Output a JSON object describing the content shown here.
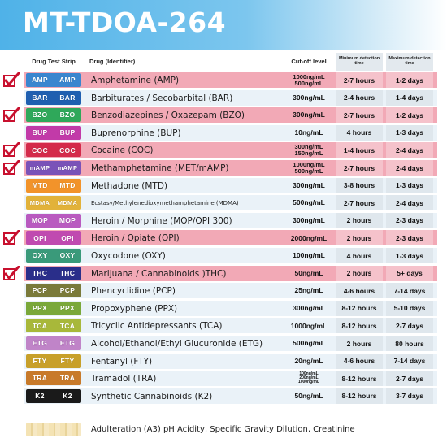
{
  "title": "MT-TDOA-264",
  "headers": {
    "strip": "Drug Test Strip",
    "drug": "Drug (Identifier)",
    "cutoff": "Cut-off level",
    "min": "Minimum detection time",
    "max": "Maximum detection time"
  },
  "colors": {
    "banner": "#4fb2e8",
    "highlight_row": "#f2a9b6",
    "normal_row": "#eaf2f8",
    "check": "#c8102e"
  },
  "rows": [
    {
      "strip": "AMP",
      "color": "#3a86cf",
      "drug": "Amphetamine (AMP)",
      "cutoff": [
        "1000ng/mL",
        "500ng/mL"
      ],
      "min": "2-7 hours",
      "max": "1-2 days",
      "checked": true
    },
    {
      "strip": "BAR",
      "color": "#1f5fb0",
      "drug": "Barbiturates / Secobarbital (BAR)",
      "cutoff": [
        "300ng/mL"
      ],
      "min": "2-4 hours",
      "max": "1-4 days",
      "checked": false
    },
    {
      "strip": "BZO",
      "color": "#2fa85a",
      "drug": "Benzodiazepines / Oxazepam (BZO)",
      "cutoff": [
        "300ng/mL"
      ],
      "min": "2-7 hours",
      "max": "1-2 days",
      "checked": true
    },
    {
      "strip": "BUP",
      "color": "#c23aa8",
      "drug": "Buprenorphine (BUP)",
      "cutoff": [
        "10ng/mL"
      ],
      "min": "4 hours",
      "max": "1-3 days",
      "checked": false
    },
    {
      "strip": "COC",
      "color": "#d42a4a",
      "drug": "Cocaine (COC)",
      "cutoff": [
        "300ng/mL",
        "150ng/mL"
      ],
      "min": "1-4 hours",
      "max": "2-4 days",
      "checked": true
    },
    {
      "strip": "mAMP",
      "color": "#7a52b8",
      "drug": "Methamphetamine (MET/mAMP)",
      "cutoff": [
        "1000ng/mL",
        "500ng/mL"
      ],
      "min": "2-7 hours",
      "max": "2-4 days",
      "checked": true
    },
    {
      "strip": "MTD",
      "color": "#f2932a",
      "drug": "Methadone (MTD)",
      "cutoff": [
        "300ng/mL"
      ],
      "min": "3-8 hours",
      "max": "1-3 days",
      "checked": false
    },
    {
      "strip": "MDMA",
      "color": "#e2b23a",
      "drug": "Ecstasy/Methylenedioxymethamphetamine (MDMA)",
      "cutoff": [
        "500ng/mL"
      ],
      "min": "2-7 hours",
      "max": "2-4 days",
      "checked": false
    },
    {
      "strip": "MOP",
      "color": "#b95ac0",
      "drug": "Heroin / Morphine (MOP/OPI 300)",
      "cutoff": [
        "300ng/mL"
      ],
      "min": "2 hours",
      "max": "2-3 days",
      "checked": false
    },
    {
      "strip": "OPI",
      "color": "#c04ab0",
      "drug": "Heroin / Opiate (OPI)",
      "cutoff": [
        "2000ng/mL"
      ],
      "min": "2 hours",
      "max": "2-3 days",
      "checked": true
    },
    {
      "strip": "OXY",
      "color": "#3a9a7a",
      "drug": "Oxycodone (OXY)",
      "cutoff": [
        "100ng/mL"
      ],
      "min": "4 hours",
      "max": "1-3 days",
      "checked": false
    },
    {
      "strip": "THC",
      "color": "#2a2e8a",
      "drug": "Marijuana / Cannabinoids )THC)",
      "cutoff": [
        "50ng/mL"
      ],
      "min": "2 hours",
      "max": "5+ days",
      "checked": true
    },
    {
      "strip": "PCP",
      "color": "#7a7a3a",
      "drug": "Phencyclidine (PCP)",
      "cutoff": [
        "25ng/mL"
      ],
      "min": "4-6 hours",
      "max": "7-14 days",
      "checked": false
    },
    {
      "strip": "PPX",
      "color": "#7aa83a",
      "drug": "Propoxyphene (PPX)",
      "cutoff": [
        "300ng/mL"
      ],
      "min": "8-12 hours",
      "max": "5-10 days",
      "checked": false
    },
    {
      "strip": "TCA",
      "color": "#a8b83a",
      "drug": "Tricyclic Antidepressants (TCA)",
      "cutoff": [
        "1000ng/mL"
      ],
      "min": "8-12 hours",
      "max": "2-7 days",
      "checked": false
    },
    {
      "strip": "ETG",
      "color": "#c084c8",
      "drug": "Alcohol/Ethanol/Ethyl Glucuronide (ETG)",
      "cutoff": [
        "500ng/mL"
      ],
      "min": "2 hours",
      "max": "80 hours",
      "checked": false
    },
    {
      "strip": "FTY",
      "color": "#c8a02a",
      "drug": "Fentanyl (FTY)",
      "cutoff": [
        "20ng/mL"
      ],
      "min": "4-6 hours",
      "max": "7-14 days",
      "checked": false
    },
    {
      "strip": "TRA",
      "color": "#c87a2a",
      "drug": "Tramadol (TRA)",
      "cutoff": [
        "100ng/mL",
        "200ng/mL",
        "1000ng/mL"
      ],
      "min": "8-12 hours",
      "max": "2-7 days",
      "checked": false
    },
    {
      "strip": "K2",
      "color": "#1a1a1a",
      "drug": "Synthetic Cannabinoids (K2)",
      "cutoff": [
        "50ng/mL"
      ],
      "min": "8-12 hours",
      "max": "3-7 days",
      "checked": false
    }
  ],
  "adulteration": {
    "text": "Adulteration (A3) pH Acidity, Specific Gravity Dilution, Creatinine"
  }
}
